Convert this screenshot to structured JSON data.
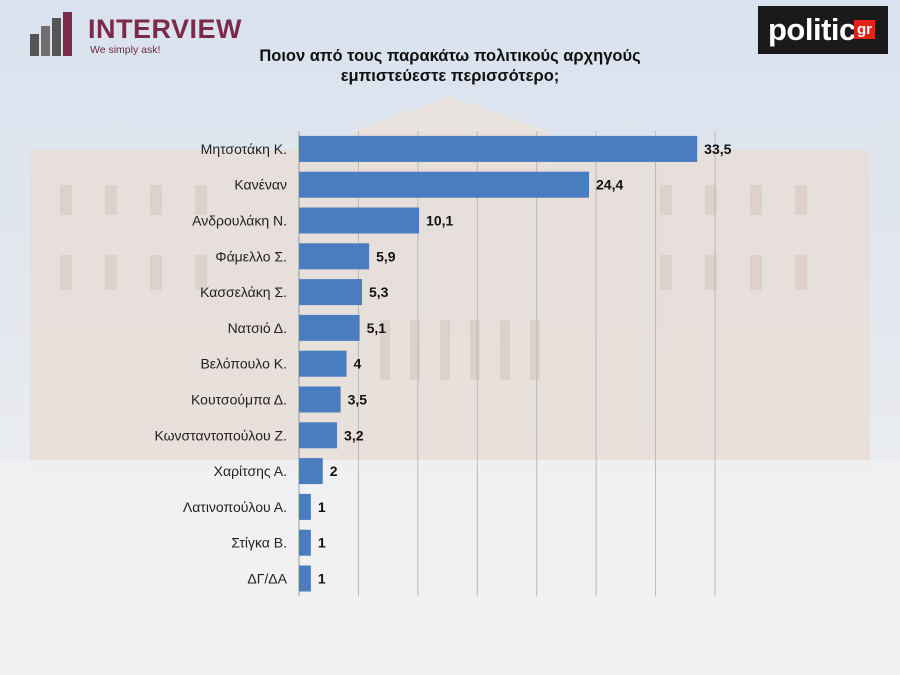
{
  "header": {
    "brand": "INTERVIEW",
    "tagline": "We simply ask!",
    "partner_logo_text": "politic",
    "partner_logo_badge": "gr"
  },
  "chart_data": {
    "type": "bar",
    "orientation": "horizontal",
    "title_lines": [
      "Ποιον από τους παρακάτω πολιτικούς αρχηγούς",
      "εμπιστεύεστε περισσότερο;"
    ],
    "categories": [
      "Μητσοτάκη Κ.",
      "Κανέναν",
      "Ανδρουλάκη Ν.",
      "Φάμελλο Σ.",
      "Κασσελάκη Σ.",
      "Νατσιό Δ.",
      "Βελόπουλο Κ.",
      "Κουτσούμπα Δ.",
      "Κωνσταντοπούλου Ζ.",
      "Χαρίτσης Α.",
      "Λατινοπούλου Α.",
      "Στίγκα Β.",
      "ΔΓ/ΔΑ"
    ],
    "values": [
      33.5,
      24.4,
      10.1,
      5.9,
      5.3,
      5.1,
      4,
      3.5,
      3.2,
      2,
      1,
      1,
      1
    ],
    "value_labels": [
      "33,5",
      "24,4",
      "10,1",
      "5,9",
      "5,3",
      "5,1",
      "4",
      "3,5",
      "3,2",
      "2",
      "1",
      "1",
      "1"
    ],
    "xlim": [
      0,
      35
    ],
    "grid": true,
    "legend": "none",
    "bar_color": "#4a7dbf"
  }
}
